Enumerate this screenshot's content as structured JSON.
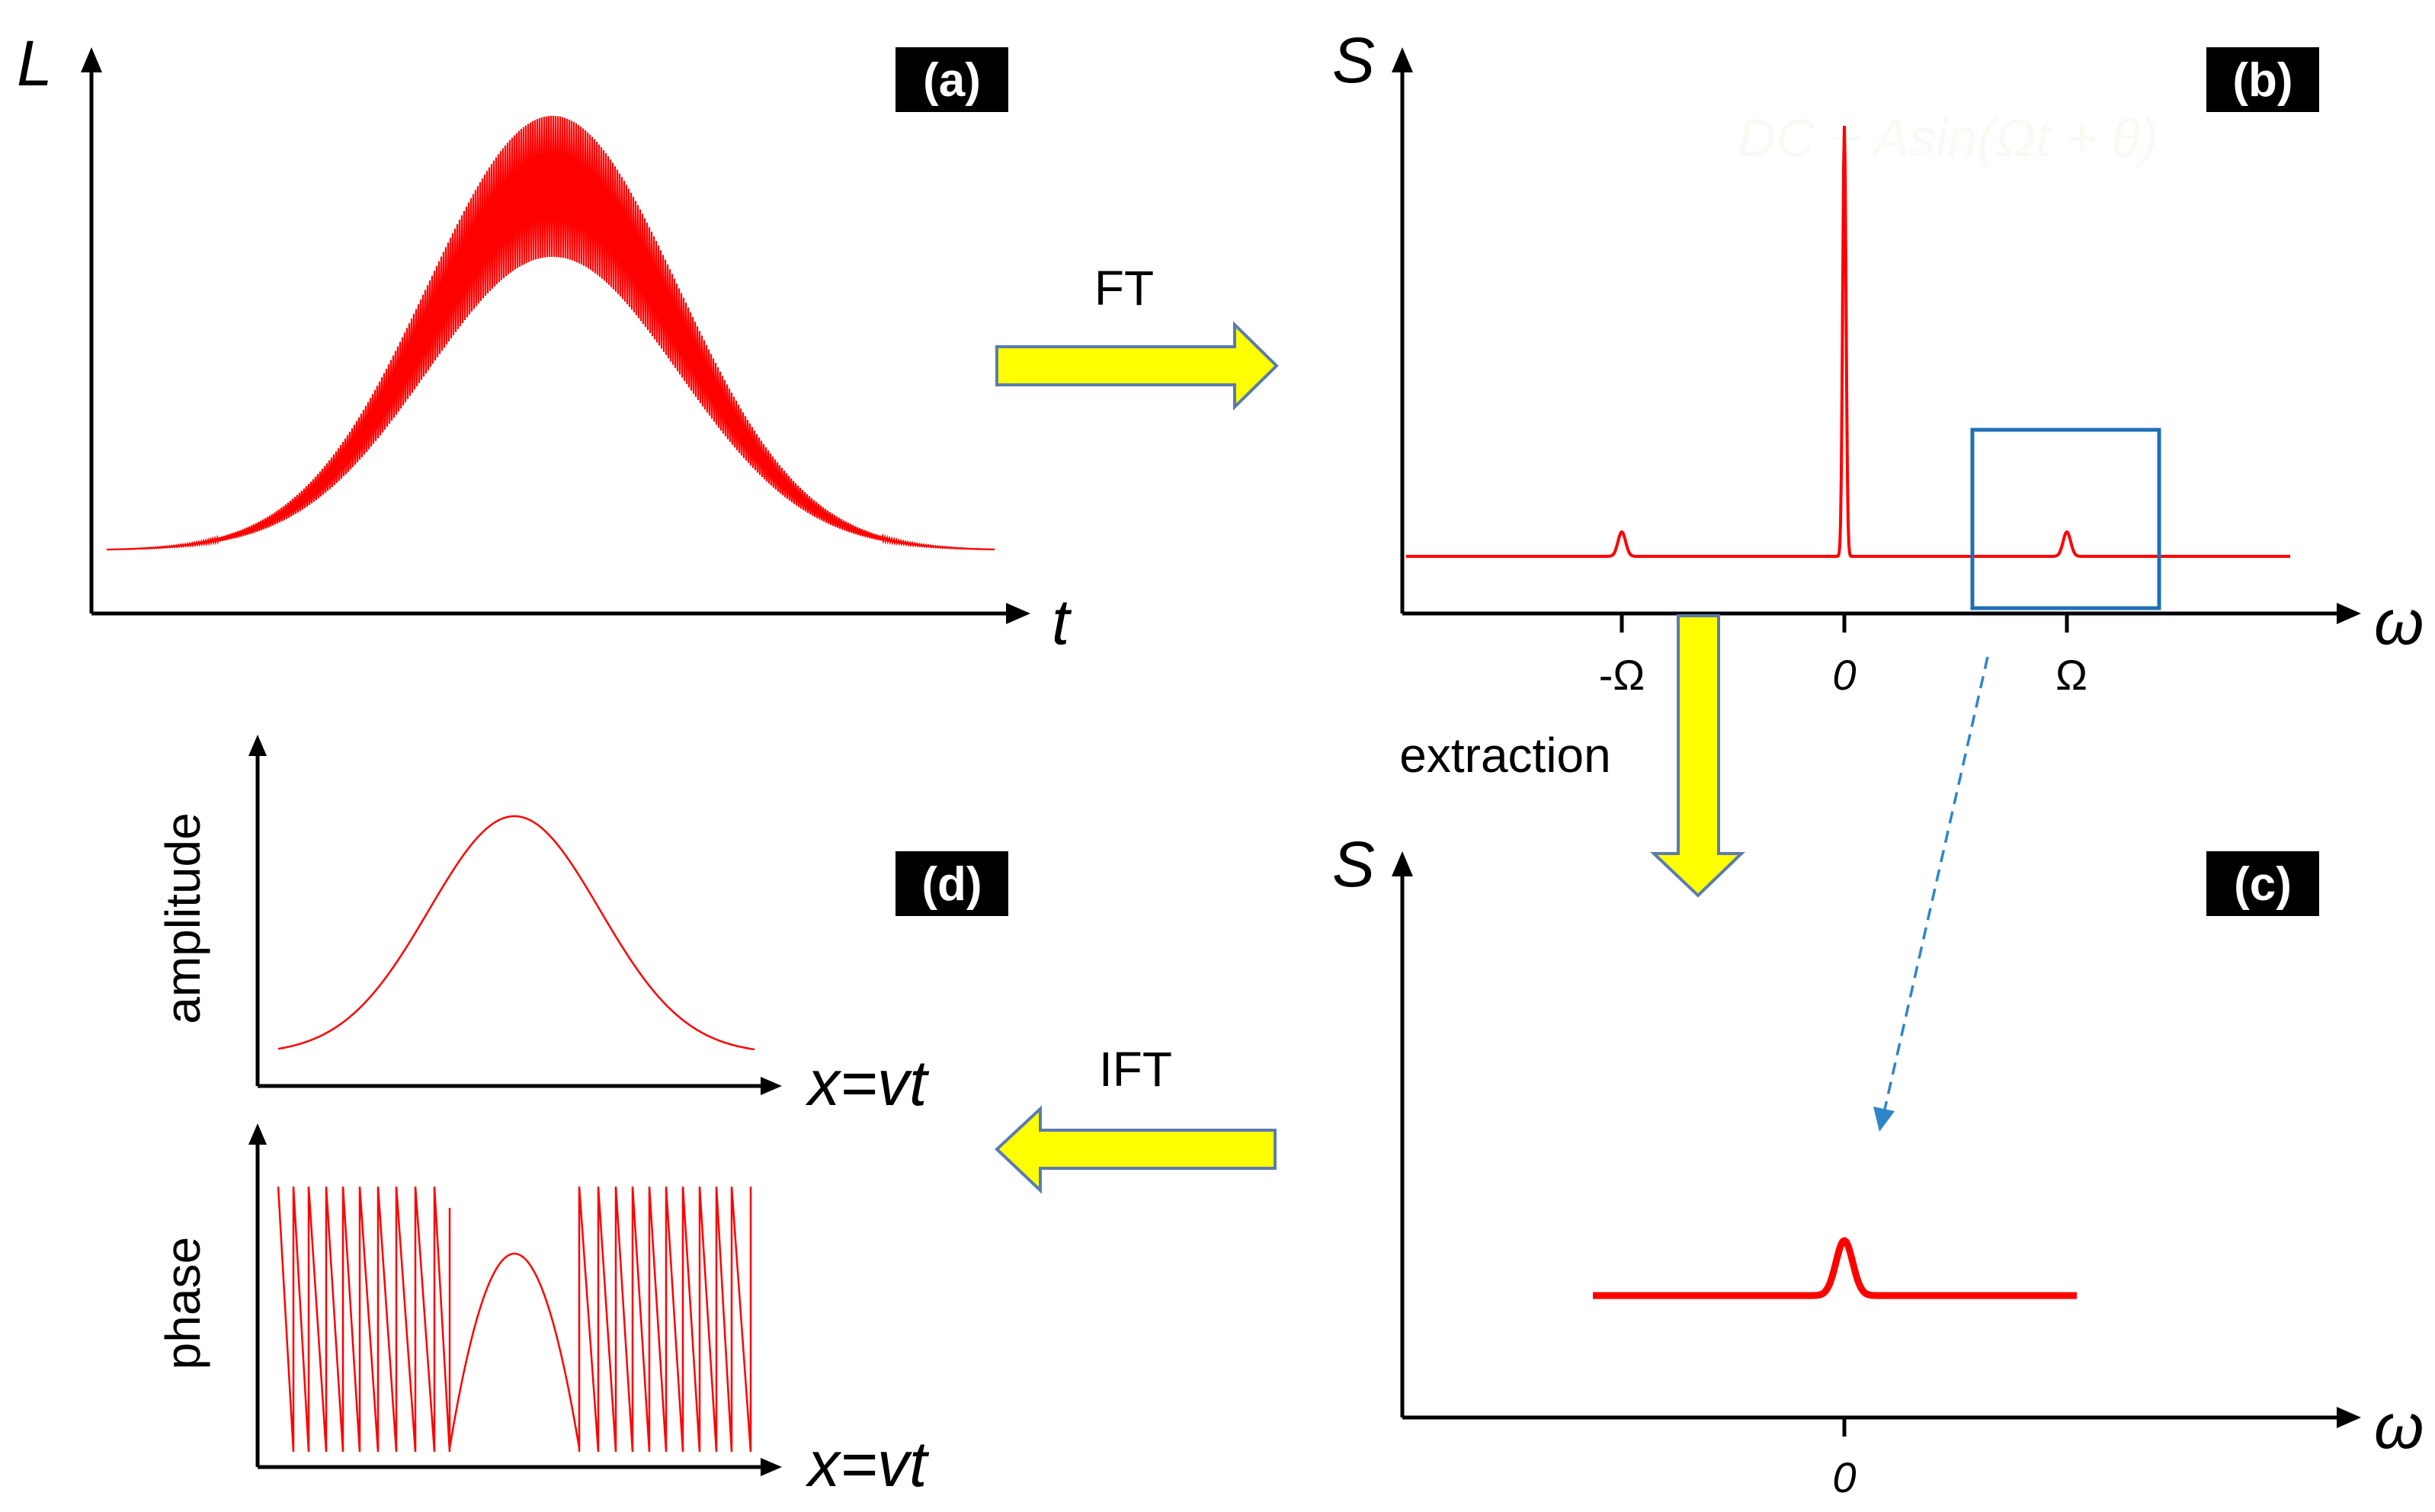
{
  "panels": {
    "a": {
      "label": "(a)",
      "y_axis": "L",
      "x_axis": "t"
    },
    "b": {
      "label": "(b)",
      "y_axis": "S",
      "x_axis": "ω",
      "ticks": [
        "-Ω",
        "0",
        "Ω"
      ],
      "watermark": "DC + Asin(Ωt + θ)"
    },
    "c": {
      "label": "(c)",
      "y_axis": "S",
      "x_axis": "ω",
      "ticks": [
        "0"
      ]
    },
    "d": {
      "label": "(d)",
      "top_ylabel": "amplitude",
      "top_xlabel": "x=vt",
      "bottom_ylabel": "phase",
      "bottom_xlabel": "x=vt"
    }
  },
  "arrows": {
    "ft": "FT",
    "ift": "IFT",
    "extraction": "extraction"
  },
  "colors": {
    "signal": "#ff0000",
    "arrow_fill": "#ffff00",
    "arrow_stroke": "#5b7bb0",
    "box": "#1f6fb5",
    "dashed": "#2e86c8"
  }
}
